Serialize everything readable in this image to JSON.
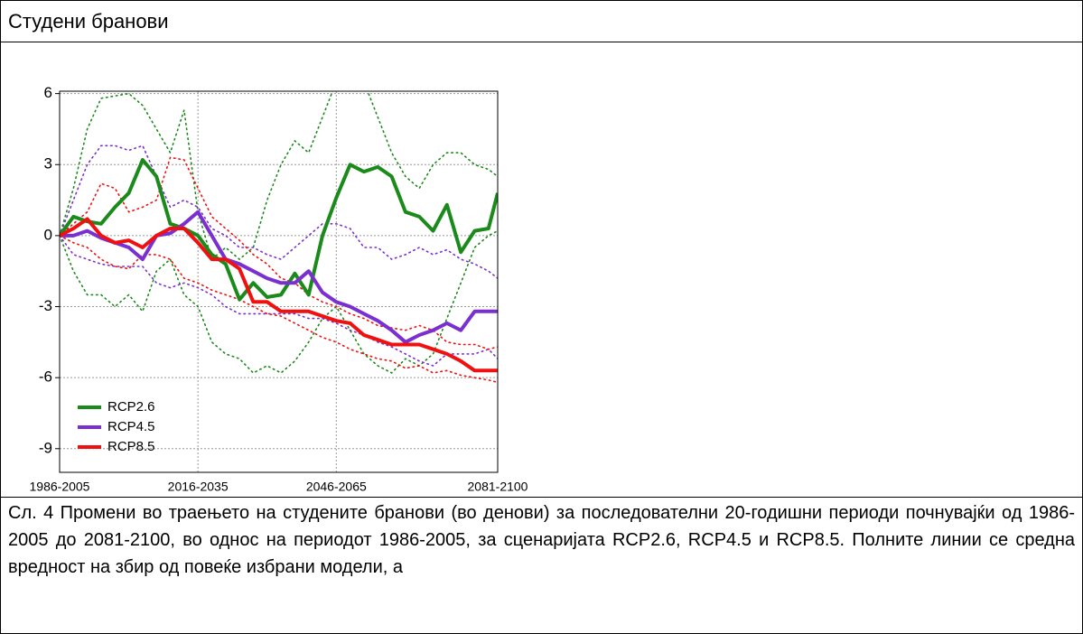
{
  "header": {
    "title": "Студени бранови"
  },
  "chart_data": {
    "type": "line",
    "x": [
      1986,
      1989,
      1992,
      1995,
      1998,
      2001,
      2004,
      2007,
      2010,
      2013,
      2016,
      2019,
      2022,
      2025,
      2028,
      2031,
      2034,
      2037,
      2040,
      2043,
      2046,
      2049,
      2052,
      2055,
      2058,
      2061,
      2064,
      2067,
      2070,
      2073,
      2076,
      2079,
      2081
    ],
    "xlim": [
      1986,
      2081
    ],
    "xticks": [
      {
        "value": 1986,
        "label": "1986-2005"
      },
      {
        "value": 2016,
        "label": "2016-2035"
      },
      {
        "value": 2046,
        "label": "2046-2065"
      },
      {
        "value": 2081,
        "label": "2081-2100"
      }
    ],
    "ylim": [
      -10,
      6.1
    ],
    "yticks": [
      6,
      3,
      0,
      -3,
      -6,
      -9
    ],
    "grid": true,
    "legend": "lower left",
    "series": [
      {
        "name": "RCP2.6",
        "color": "#1a8a1a",
        "values": [
          0,
          0.8,
          0.6,
          0.5,
          1.2,
          1.8,
          3.2,
          2.5,
          0.5,
          0.3,
          0.0,
          -0.8,
          -1.2,
          -2.7,
          -2.0,
          -2.6,
          -2.5,
          -1.6,
          -2.5,
          0.0,
          1.6,
          3.0,
          2.7,
          2.9,
          2.5,
          1.0,
          0.8,
          0.2,
          1.3,
          -0.7,
          0.2,
          0.3,
          1.8
        ]
      },
      {
        "name": "RCP4.5",
        "color": "#7a2fd0",
        "values": [
          0,
          0.0,
          0.2,
          -0.1,
          -0.3,
          -0.5,
          -1.0,
          0.0,
          0.1,
          0.5,
          1.0,
          0.0,
          -1.0,
          -1.2,
          -1.5,
          -1.8,
          -2.0,
          -2.0,
          -1.5,
          -2.4,
          -2.8,
          -3.0,
          -3.3,
          -3.6,
          -4.0,
          -4.5,
          -4.2,
          -4.0,
          -3.7,
          -4.0,
          -3.2,
          -3.2,
          -3.2
        ]
      },
      {
        "name": "RCP8.5",
        "color": "#f01010",
        "values": [
          0,
          0.3,
          0.7,
          0.0,
          -0.3,
          -0.2,
          -0.5,
          0.0,
          0.3,
          0.3,
          -0.3,
          -1.0,
          -1.0,
          -1.4,
          -2.8,
          -2.8,
          -3.2,
          -3.2,
          -3.2,
          -3.4,
          -3.6,
          -3.7,
          -4.2,
          -4.4,
          -4.6,
          -4.6,
          -4.6,
          -4.8,
          -5.0,
          -5.3,
          -5.7,
          -5.7,
          -5.7
        ]
      }
    ],
    "bands": [
      {
        "color": "#1a8a1a",
        "upper": [
          0,
          2,
          4.5,
          5.8,
          5.9,
          6.0,
          5.5,
          4.5,
          3.5,
          5.3,
          1.0,
          -1.0,
          -0.5,
          -1.0,
          -0.5,
          1.5,
          3.0,
          4.0,
          3.5,
          5.0,
          6.5,
          7.0,
          6.5,
          5.0,
          3.5,
          2.5,
          2.0,
          3.0,
          3.5,
          3.5,
          3.0,
          2.8,
          2.5
        ],
        "lower": [
          0,
          -1.5,
          -2.5,
          -2.5,
          -3.0,
          -2.5,
          -3.2,
          -1.5,
          -1.0,
          -2.5,
          -3.0,
          -4.5,
          -5.0,
          -5.2,
          -5.8,
          -5.5,
          -5.8,
          -5.3,
          -4.5,
          -3.5,
          -3.0,
          -4.0,
          -5.0,
          -5.5,
          -5.8,
          -5.2,
          -5.5,
          -5.0,
          -3.5,
          -2.0,
          -0.5,
          0,
          0.2
        ]
      },
      {
        "color": "#7a2fd0",
        "upper": [
          0,
          1.5,
          3.0,
          3.8,
          3.8,
          3.6,
          3.8,
          2.5,
          1.2,
          1.5,
          1.2,
          0.3,
          0.0,
          -0.5,
          -0.5,
          -0.8,
          -1.0,
          -0.5,
          0.0,
          0.5,
          0.5,
          0.3,
          -0.5,
          -0.5,
          -1.0,
          -0.8,
          -0.5,
          -0.8,
          -0.6,
          -1.0,
          -1.2,
          -1.5,
          -1.8
        ],
        "lower": [
          0,
          -0.8,
          -1.0,
          -1.2,
          -1.3,
          -1.3,
          -1.3,
          -2.0,
          -2.2,
          -2.0,
          -2.2,
          -2.5,
          -3.0,
          -3.3,
          -3.3,
          -3.3,
          -3.3,
          -3.3,
          -3.5,
          -3.5,
          -3.7,
          -4.0,
          -4.2,
          -4.5,
          -4.7,
          -5.0,
          -5.3,
          -5.5,
          -5.0,
          -5.0,
          -5.0,
          -4.8,
          -5.2
        ]
      },
      {
        "color": "#f01010",
        "upper": [
          0,
          0.5,
          1.0,
          2.2,
          2.0,
          1.0,
          1.2,
          1.5,
          3.3,
          3.2,
          2.0,
          0.8,
          0.3,
          -0.2,
          -0.8,
          -1.2,
          -1.8,
          -2.0,
          -2.5,
          -2.8,
          -3.0,
          -3.3,
          -3.5,
          -3.8,
          -3.9,
          -4.0,
          -3.8,
          -4.0,
          -4.5,
          -4.6,
          -4.6,
          -4.8,
          -4.7
        ],
        "lower": [
          0,
          -0.3,
          -0.5,
          -1.0,
          -1.3,
          -1.4,
          -0.8,
          -0.8,
          -1.0,
          -1.8,
          -2.0,
          -2.3,
          -2.5,
          -2.7,
          -3.0,
          -3.3,
          -3.4,
          -3.7,
          -4.0,
          -4.3,
          -4.5,
          -4.8,
          -5.0,
          -5.2,
          -5.3,
          -5.6,
          -5.5,
          -5.8,
          -5.7,
          -5.9,
          -6.0,
          -6.1,
          -6.2
        ]
      }
    ]
  },
  "caption": "Сл. 4 Промени во траењето на студените бранови (во денови) за последователни 20-годишни периоди почнувајќи од 1986-2005 до 2081-2100, во однос на периодот 1986-2005, за сценаријата RCP2.6, RCP4.5 и RCP8.5. Полните линии се средна вредност на збир од повеќе избрани модели, а"
}
